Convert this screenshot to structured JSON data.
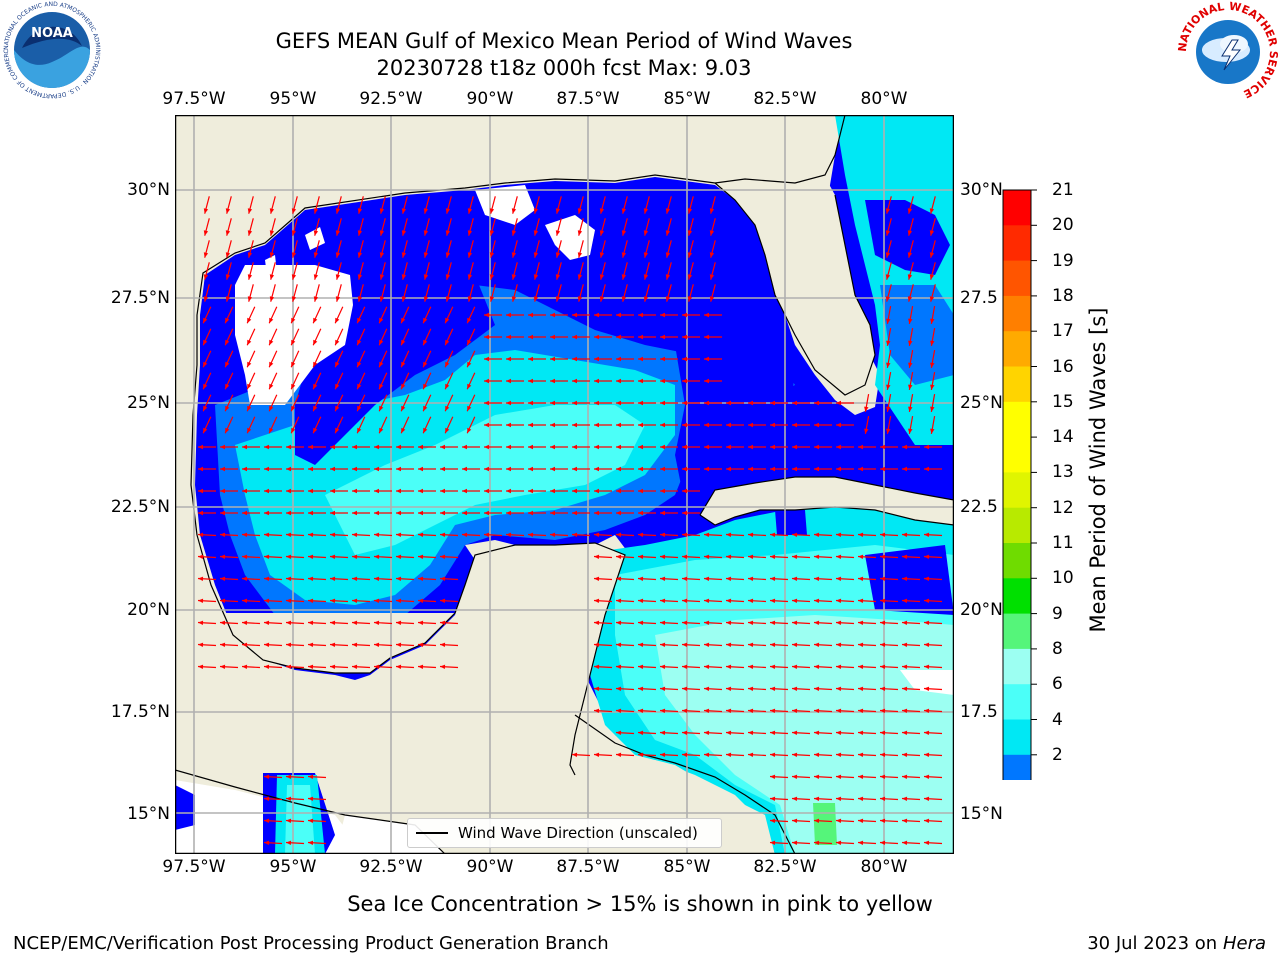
{
  "title_line1": "GEFS MEAN Gulf of Mexico Mean Period of Wind Waves",
  "title_line2": "20230728 t18z 000h fcst   Max: 9.03",
  "lon_labels": [
    "97.5°W",
    "95°W",
    "92.5°W",
    "90°W",
    "87.5°W",
    "85°W",
    "82.5°W",
    "80°W"
  ],
  "lat_labels_left": [
    "30°N",
    "27.5°N",
    "25°N",
    "22.5°N",
    "20°N",
    "17.5°N",
    "15°N"
  ],
  "lat_labels_right": [
    "30°N",
    "27.5",
    "25°N",
    "22.5",
    "20°N",
    "17.5",
    "15°N"
  ],
  "colorbar": {
    "title": "Mean Period of Wind Waves [s]",
    "ticks": [
      "21",
      "20",
      "19",
      "18",
      "17",
      "16",
      "15",
      "14",
      "13",
      "12",
      "11",
      "10",
      "9",
      "8",
      "6",
      "4",
      "2"
    ],
    "colors": [
      "#ff0000",
      "#ff2a00",
      "#ff5500",
      "#ff7f00",
      "#ffaa00",
      "#ffd400",
      "#ffff00",
      "#ffff00",
      "#e0f500",
      "#b8ea00",
      "#6fdc00",
      "#00e000",
      "#55f57a",
      "#9cfff2",
      "#4bfff8",
      "#00e8f4",
      "#0077ff",
      "#0000ff"
    ]
  },
  "legend_label": "Wind Wave Direction (unscaled)",
  "subnote": "Sea Ice Concentration > 15% is shown in pink to yellow",
  "footer_left": "NCEP/EMC/Verification Post Processing Product Generation Branch",
  "footer_right_date": "30 Jul 2023 on ",
  "footer_right_host": "Hera",
  "logo_left": {
    "icon": "noaa-logo",
    "text": "NOAA",
    "ring_text": "NATIONAL OCEANIC AND ATMOSPHERIC ADMINISTRATION · U.S. DEPARTMENT OF COMMERCE"
  },
  "logo_right": {
    "icon": "nws-logo",
    "ring_text": "NATIONAL WEATHER SERVICE"
  },
  "map_colors": {
    "land": "#efeddc",
    "water_white": "#ffffff",
    "lvl2": "#0000ff",
    "lvl4": "#0077ff",
    "lvl6": "#00e8f4",
    "lvl8": "#4bfff8",
    "lvl9": "#9cfff2",
    "lvl10": "#55f57a",
    "arrow": "#ff0000"
  },
  "map_extent": {
    "lon_min": -98,
    "lon_max": -78.2,
    "lat_min": 14,
    "lat_max": 31.7
  }
}
